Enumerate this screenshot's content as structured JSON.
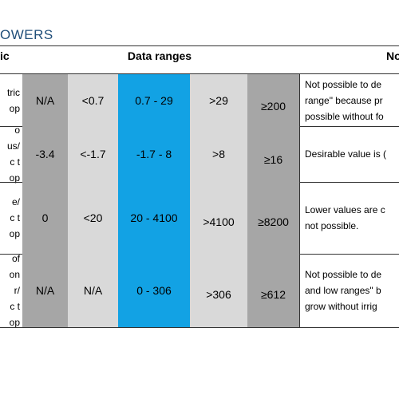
{
  "title": "OWERS",
  "header": {
    "stub": "ic",
    "ranges": "Data ranges",
    "notes": "No"
  },
  "rows": [
    {
      "stub": [
        "tric",
        "op"
      ],
      "cells": [
        "N/A",
        "<0.7",
        "0.7 - 29",
        ">29",
        "≥200"
      ],
      "notes": [
        "Not possible to de",
        "range\" because pr",
        "possible without fo"
      ]
    },
    {
      "stub": [
        "o",
        "us/",
        "c t",
        "op"
      ],
      "cells": [
        "-3.4",
        "<-1.7",
        "-1.7 - 8",
        ">8",
        "≥16"
      ],
      "notes": [
        "Desirable value is ("
      ]
    },
    {
      "stub": [
        "e/",
        "c t",
        "op"
      ],
      "cells": [
        "0",
        "<20",
        "20 - 4100",
        ">4100",
        "≥8200"
      ],
      "notes": [
        "Lower values are c",
        "not possible."
      ]
    },
    {
      "stub": [
        "of",
        "on",
        "r/",
        "c t",
        "op"
      ],
      "cells": [
        "N/A",
        "N/A",
        "0 - 306",
        ">306",
        "≥612"
      ],
      "notes": [
        "Not possible to de",
        "and low ranges\" b",
        "grow without irrig"
      ]
    }
  ]
}
